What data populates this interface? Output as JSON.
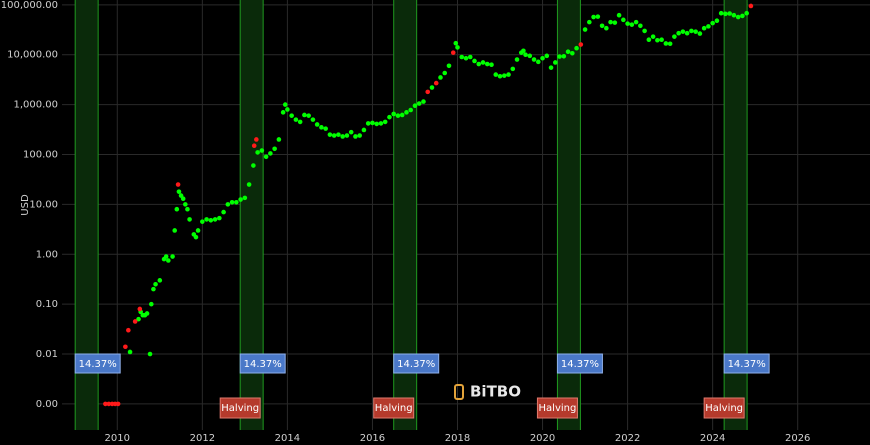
{
  "chart_data": {
    "type": "scatter",
    "ylabel": "USD",
    "watermark": "BiTBO",
    "log_y": true,
    "grid": true,
    "xlim": [
      2008.7,
      2027.7
    ],
    "xticks": [
      2010,
      2012,
      2014,
      2016,
      2018,
      2020,
      2022,
      2024,
      2026
    ],
    "ylim": [
      0.0003,
      125000
    ],
    "yticks": [
      {
        "value": 0.001,
        "label": "0.00"
      },
      {
        "value": 0.01,
        "label": "0.01"
      },
      {
        "value": 0.1,
        "label": "0.10"
      },
      {
        "value": 1,
        "label": "1.00"
      },
      {
        "value": 10,
        "label": "10.00"
      },
      {
        "value": 100,
        "label": "100.00"
      },
      {
        "value": 1000,
        "label": "1,000.00"
      },
      {
        "value": 10000,
        "label": "10,000.00"
      },
      {
        "value": 100000,
        "label": "100,000.00"
      }
    ],
    "bands": [
      {
        "start": 2009.01,
        "end": 2009.55,
        "label": "14.37%"
      },
      {
        "start": 2012.89,
        "end": 2013.43,
        "label": "14.37%",
        "halving": "Halving"
      },
      {
        "start": 2016.5,
        "end": 2017.04,
        "label": "14.37%",
        "halving": "Halving"
      },
      {
        "start": 2020.35,
        "end": 2020.89,
        "label": "14.37%",
        "halving": "Halving"
      },
      {
        "start": 2024.27,
        "end": 2024.81,
        "label": "14.37%",
        "halving": "Halving"
      }
    ],
    "series": [
      {
        "color": "#00ff00",
        "x": [
          2010.3,
          2010.5,
          2010.55,
          2010.6,
          2010.65,
          2010.7,
          2010.77,
          2010.8,
          2010.85,
          2010.9,
          2011.0,
          2011.1,
          2011.15,
          2011.2,
          2011.3,
          2011.35,
          2011.4,
          2011.45,
          2011.5,
          2011.55,
          2011.6,
          2011.65,
          2011.7,
          2011.8,
          2011.85,
          2011.9,
          2012.0,
          2012.1,
          2012.2,
          2012.3,
          2012.4,
          2012.5,
          2012.6,
          2012.7,
          2012.8,
          2012.9,
          2013.0,
          2013.1,
          2013.2,
          2013.3,
          2013.4,
          2013.5,
          2013.6,
          2013.7,
          2013.8,
          2013.9,
          2013.95,
          2014.0,
          2014.1,
          2014.2,
          2014.3,
          2014.4,
          2014.5,
          2014.6,
          2014.7,
          2014.8,
          2014.9,
          2015.0,
          2015.1,
          2015.2,
          2015.3,
          2015.4,
          2015.5,
          2015.6,
          2015.7,
          2015.8,
          2015.9,
          2016.0,
          2016.1,
          2016.2,
          2016.3,
          2016.4,
          2016.5,
          2016.6,
          2016.7,
          2016.8,
          2016.9,
          2017.0,
          2017.1,
          2017.2,
          2017.4,
          2017.6,
          2017.7,
          2017.8,
          2017.96,
          2018.0,
          2018.1,
          2018.2,
          2018.3,
          2018.4,
          2018.5,
          2018.6,
          2018.7,
          2018.8,
          2018.9,
          2019.0,
          2019.1,
          2019.2,
          2019.3,
          2019.4,
          2019.5,
          2019.55,
          2019.6,
          2019.7,
          2019.8,
          2019.9,
          2020.0,
          2020.1,
          2020.2,
          2020.3,
          2020.4,
          2020.5,
          2020.6,
          2020.7,
          2020.8,
          2021.0,
          2021.1,
          2021.2,
          2021.3,
          2021.4,
          2021.5,
          2021.6,
          2021.7,
          2021.8,
          2021.9,
          2022.0,
          2022.1,
          2022.2,
          2022.3,
          2022.4,
          2022.5,
          2022.6,
          2022.7,
          2022.8,
          2022.9,
          2023.0,
          2023.1,
          2023.2,
          2023.3,
          2023.4,
          2023.5,
          2023.6,
          2023.7,
          2023.8,
          2023.9,
          2024.0,
          2024.1,
          2024.2,
          2024.3,
          2024.4,
          2024.5,
          2024.6,
          2024.7,
          2024.8
        ],
        "values": [
          0.011,
          0.05,
          0.07,
          0.06,
          0.06,
          0.065,
          0.01,
          0.1,
          0.2,
          0.25,
          0.3,
          0.8,
          0.9,
          0.75,
          0.9,
          3,
          8,
          18,
          15,
          13,
          10,
          8,
          5,
          2.5,
          2.2,
          3,
          4.5,
          5,
          4.8,
          5,
          5.3,
          7,
          10,
          11,
          11,
          12.5,
          13.5,
          25,
          60,
          110,
          120,
          90,
          105,
          130,
          200,
          700,
          1000,
          800,
          600,
          500,
          450,
          620,
          600,
          500,
          400,
          350,
          330,
          250,
          240,
          250,
          230,
          240,
          280,
          230,
          240,
          310,
          420,
          430,
          410,
          420,
          450,
          560,
          650,
          600,
          620,
          700,
          780,
          950,
          1050,
          1150,
          2200,
          3500,
          4300,
          6000,
          17000,
          14000,
          9000,
          8500,
          9000,
          7500,
          6500,
          7000,
          6500,
          6300,
          4000,
          3700,
          3800,
          4000,
          5200,
          8000,
          11000,
          12000,
          10000,
          9500,
          8000,
          7200,
          8500,
          9500,
          5500,
          7000,
          9200,
          9300,
          11500,
          10700,
          13500,
          32000,
          45000,
          57000,
          58000,
          38000,
          34000,
          45000,
          44000,
          62000,
          50000,
          42000,
          40000,
          45000,
          38000,
          30000,
          20000,
          23000,
          19500,
          20000,
          16800,
          16600,
          23000,
          27000,
          29000,
          27000,
          30000,
          29000,
          26500,
          34000,
          37000,
          43000,
          48000,
          68000,
          66000,
          67000,
          62000,
          57000,
          60000,
          68000
        ]
      },
      {
        "color": "#ff1a1a",
        "x": [
          2009.72,
          2009.8,
          2009.88,
          2009.95,
          2010.02,
          2010.19,
          2010.26,
          2010.42,
          2010.53,
          2011.43,
          2013.22,
          2013.27,
          2017.3,
          2017.5,
          2017.9,
          2020.9,
          2024.9
        ],
        "values": [
          0.001,
          0.001,
          0.001,
          0.001,
          0.001,
          0.014,
          0.03,
          0.045,
          0.08,
          25,
          150,
          200,
          1800,
          2700,
          11000,
          16000,
          95000
        ]
      }
    ]
  }
}
